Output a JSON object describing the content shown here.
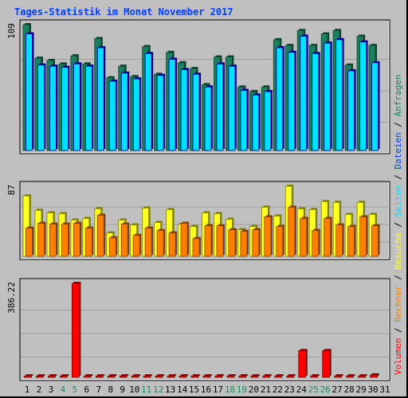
{
  "title": "Tages-Statistik im Monat November 2017",
  "chart_data": {
    "title": "Tages-Statistik im Monat November 2017",
    "type": "bar",
    "days": [
      "1",
      "2",
      "3",
      "4",
      "5",
      "6",
      "7",
      "8",
      "9",
      "10",
      "11",
      "12",
      "13",
      "14",
      "15",
      "16",
      "17",
      "18",
      "19",
      "20",
      "21",
      "22",
      "23",
      "24",
      "25",
      "26",
      "27",
      "28",
      "29",
      "30",
      "31"
    ],
    "weekend_days": [
      "4",
      "5",
      "11",
      "12",
      "18",
      "19",
      "25",
      "26"
    ],
    "colors": {
      "title": "#0040ff",
      "weekday": "#000000",
      "weekend": "#228b5a",
      "anfragen": "#1a8060",
      "dateien": "#0040ff",
      "seiten": "#00e0ff",
      "besuche": "#ffff20",
      "rechner": "#ff8000",
      "volumen": "#ff0000",
      "background": "#c0c0c0",
      "gridline": "#a0a0a0"
    },
    "panels": [
      {
        "name": "top",
        "max_label": "109",
        "ylim": [
          0,
          109
        ],
        "series": [
          {
            "name": "Anfragen",
            "values": [
              109,
              80,
              78,
              75,
              82,
              75,
              97,
              63,
              73,
              64,
              90,
              66,
              85,
              76,
              71,
              57,
              81,
              81,
              55,
              51,
              55,
              96,
              91,
              104,
              91,
              101,
              104,
              74,
              99,
              91,
              0
            ]
          },
          {
            "name": "Seiten",
            "values": [
              101,
              74,
              73,
              72,
              75,
              73,
              89,
              60,
              67,
              62,
              84,
              65,
              79,
              70,
              66,
              55,
              75,
              73,
              52,
              48,
              51,
              89,
              85,
              99,
              84,
              93,
              96,
              69,
              94,
              76,
              0
            ]
          }
        ]
      },
      {
        "name": "middle",
        "max_label": "87",
        "ylim": [
          0,
          87
        ],
        "series": [
          {
            "name": "Besuche",
            "values": [
              75,
              57,
              54,
              53,
              45,
              47,
              59,
              29,
              45,
              39,
              60,
              42,
              58,
              40,
              37,
              54,
              53,
              46,
              33,
              37,
              61,
              50,
              87,
              59,
              58,
              68,
              67,
              52,
              67,
              52,
              0
            ]
          },
          {
            "name": "Rechner",
            "values": [
              35,
              41,
              40,
              40,
              41,
              35,
              51,
              23,
              40,
              26,
              35,
              32,
              29,
              41,
              22,
              38,
              38,
              33,
              31,
              33,
              49,
              37,
              61,
              47,
              32,
              47,
              39,
              37,
              49,
              38,
              0
            ]
          }
        ]
      },
      {
        "name": "bottom",
        "max_label": "386.22",
        "ylim": [
          0,
          386.22
        ],
        "series": [
          {
            "name": "Volumen",
            "values": [
              6,
              6,
              6,
              6,
              386.22,
              6,
              6,
              6,
              6,
              6,
              6,
              6,
              6,
              6,
              6,
              6,
              6,
              6,
              6,
              6,
              6,
              6,
              6,
              110,
              6,
              110,
              6,
              6,
              6,
              10,
              0
            ]
          }
        ]
      }
    ],
    "legend": [
      {
        "label": "Volumen",
        "color": "#ff0000"
      },
      {
        "label": "/",
        "color": "#000000"
      },
      {
        "label": "Rechner",
        "color": "#ff8000"
      },
      {
        "label": "/",
        "color": "#000000"
      },
      {
        "label": "Besuche",
        "color": "#ffff20"
      },
      {
        "label": "/",
        "color": "#000000"
      },
      {
        "label": "Seiten",
        "color": "#00e0ff"
      },
      {
        "label": "/",
        "color": "#000000"
      },
      {
        "label": "Dateien",
        "color": "#0040ff"
      },
      {
        "label": "/",
        "color": "#000000"
      },
      {
        "label": "Anfragen",
        "color": "#1a8060"
      }
    ]
  }
}
